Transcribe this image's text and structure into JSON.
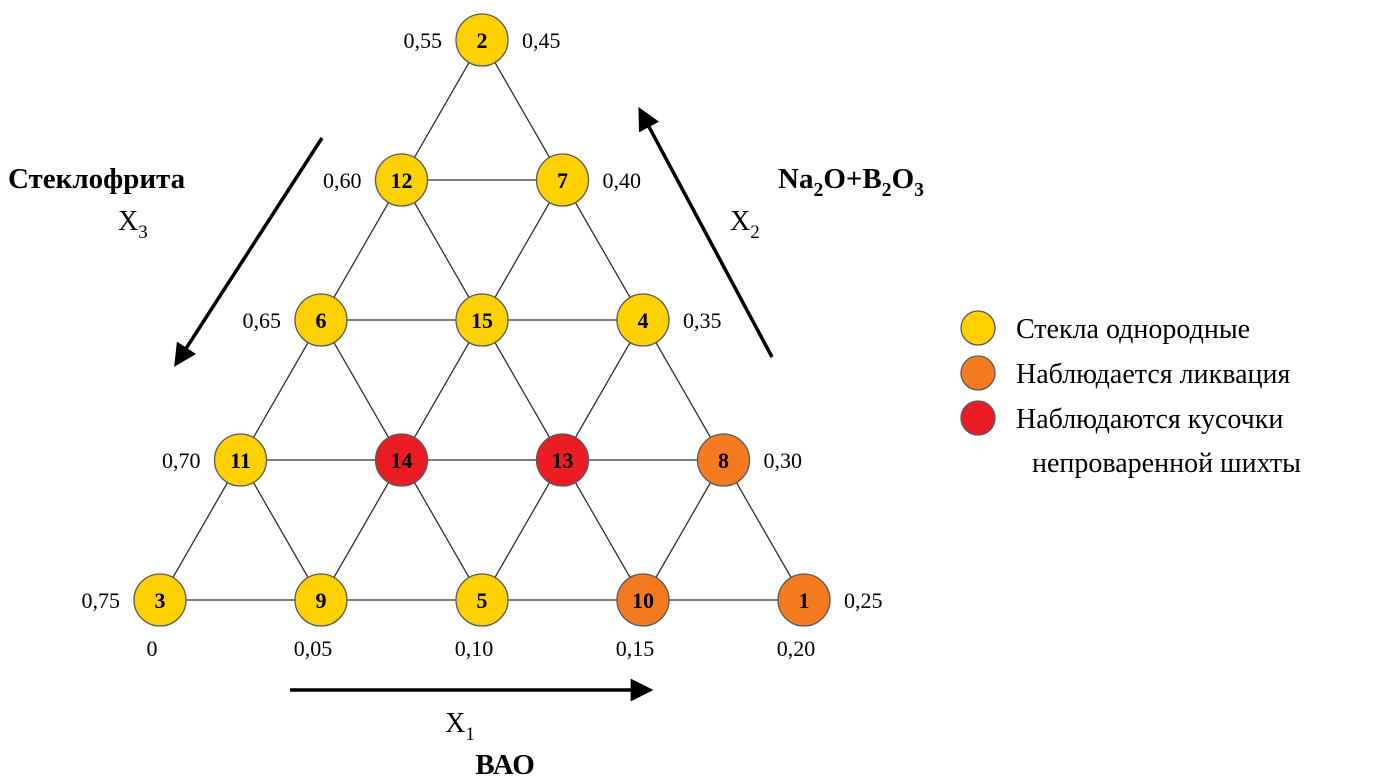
{
  "diagram": {
    "colors": {
      "yellow": "#FFD100",
      "orange": "#F47B20",
      "red": "#EC1C24"
    },
    "nodes": [
      {
        "id": "2",
        "row": 0,
        "col": 0,
        "status": "yellow"
      },
      {
        "id": "12",
        "row": 1,
        "col": 0,
        "status": "yellow"
      },
      {
        "id": "7",
        "row": 1,
        "col": 1,
        "status": "yellow"
      },
      {
        "id": "6",
        "row": 2,
        "col": 0,
        "status": "yellow"
      },
      {
        "id": "15",
        "row": 2,
        "col": 1,
        "status": "yellow"
      },
      {
        "id": "4",
        "row": 2,
        "col": 2,
        "status": "yellow"
      },
      {
        "id": "11",
        "row": 3,
        "col": 0,
        "status": "yellow"
      },
      {
        "id": "14",
        "row": 3,
        "col": 1,
        "status": "red"
      },
      {
        "id": "13",
        "row": 3,
        "col": 2,
        "status": "red"
      },
      {
        "id": "8",
        "row": 3,
        "col": 3,
        "status": "orange"
      },
      {
        "id": "3",
        "row": 4,
        "col": 0,
        "status": "yellow"
      },
      {
        "id": "9",
        "row": 4,
        "col": 1,
        "status": "yellow"
      },
      {
        "id": "5",
        "row": 4,
        "col": 2,
        "status": "yellow"
      },
      {
        "id": "10",
        "row": 4,
        "col": 3,
        "status": "orange"
      },
      {
        "id": "1",
        "row": 4,
        "col": 4,
        "status": "orange"
      }
    ],
    "left_axis_labels": [
      "0,55",
      "0,60",
      "0,65",
      "0,70",
      "0,75"
    ],
    "right_axis_labels": [
      "0,45",
      "0,40",
      "0,35",
      "0,30",
      "0,25"
    ],
    "bottom_axis_labels": [
      "0",
      "0,05",
      "0,10",
      "0,15",
      "0,20"
    ],
    "axes": {
      "x1": {
        "symbol": "X",
        "subscript": "1",
        "name_parts": [
          [
            "t",
            "ВАО"
          ]
        ]
      },
      "x2": {
        "symbol": "X",
        "subscript": "2",
        "name_parts": [
          [
            "t",
            "Na"
          ],
          [
            "s",
            "2"
          ],
          [
            "t",
            "O+B"
          ],
          [
            "s",
            "2"
          ],
          [
            "t",
            "O"
          ],
          [
            "s",
            "3"
          ]
        ]
      },
      "x3": {
        "symbol": "X",
        "subscript": "3",
        "name_parts": [
          [
            "t",
            "Стеклофрита"
          ]
        ]
      }
    },
    "legend": [
      {
        "status": "yellow",
        "lines": [
          "Стекла однородные"
        ]
      },
      {
        "status": "orange",
        "lines": [
          "Наблюдается ликвация"
        ]
      },
      {
        "status": "red",
        "lines": [
          "Наблюдаются кусочки",
          "непроваренной шихты"
        ]
      }
    ]
  }
}
